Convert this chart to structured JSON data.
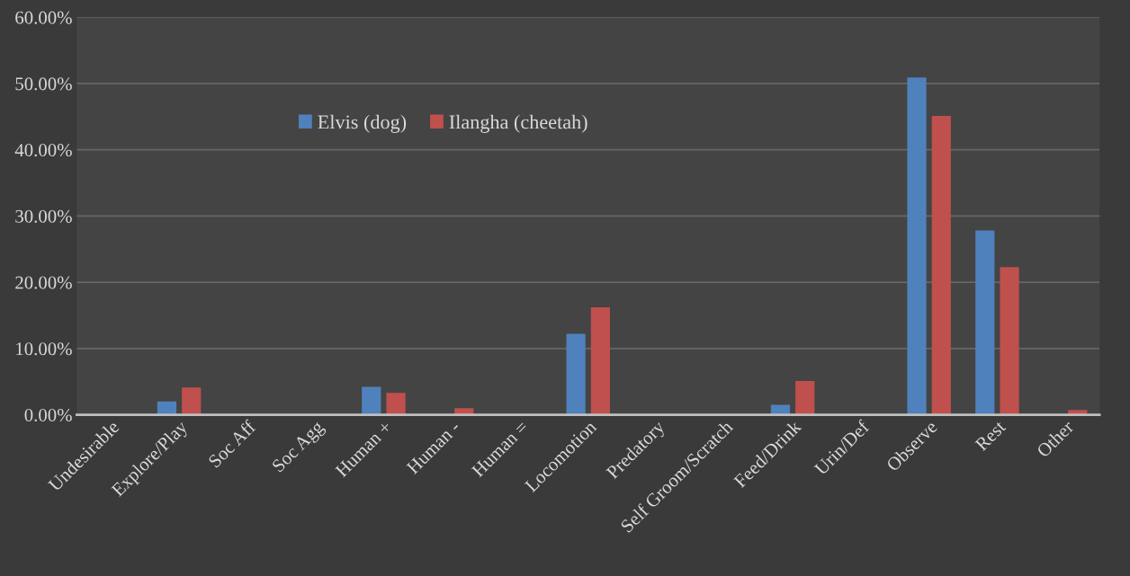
{
  "chart_data": {
    "type": "bar",
    "categories": [
      "Undesirable",
      "Explore/Play",
      "Soc Aff",
      "Soc Agg",
      "Human +",
      "Human -",
      "Human =",
      "Locomotion",
      "Predatory",
      "Self Groom/Scratch",
      "Feed/Drink",
      "Urin/Def",
      "Observe",
      "Rest",
      "Other"
    ],
    "series": [
      {
        "name": "Elvis (dog)",
        "color": "#4f81bd",
        "values": [
          0,
          2.0,
          0,
          0,
          4.2,
          0,
          0,
          12.2,
          0,
          0,
          1.5,
          0,
          50.9,
          27.8,
          0
        ]
      },
      {
        "name": "Ilangha (cheetah)",
        "color": "#c0504d",
        "values": [
          0,
          4.1,
          0,
          0,
          3.3,
          1.0,
          0,
          16.2,
          0,
          0,
          5.1,
          0,
          45.1,
          22.3,
          0.7
        ]
      }
    ],
    "ylim": [
      0,
      60
    ],
    "yticks": [
      {
        "value": 0,
        "label": "0.00%"
      },
      {
        "value": 10,
        "label": "10.00%"
      },
      {
        "value": 20,
        "label": "20.00%"
      },
      {
        "value": 30,
        "label": "30.00%"
      },
      {
        "value": 40,
        "label": "40.00%"
      },
      {
        "value": 50,
        "label": "50.00%"
      },
      {
        "value": 60,
        "label": "60.00%"
      }
    ],
    "grid": "y",
    "legend": "top"
  }
}
